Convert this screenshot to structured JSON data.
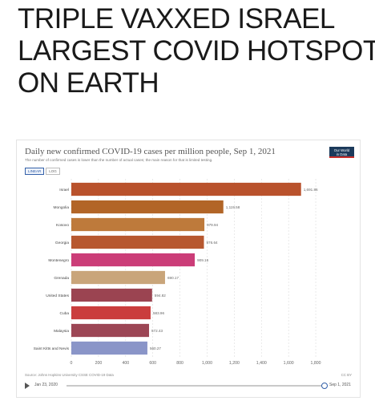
{
  "headline": {
    "lines": [
      "TRIPLE VAXXED ISRAEL",
      "LARGEST COVID HOTSPOT",
      "ON EARTH"
    ]
  },
  "card": {
    "title": "Daily new confirmed COVID-19 cases per million people, Sep 1, 2021",
    "subtitle": "The number of confirmed cases is lower than the number of actual cases; the main reason for that is limited testing.",
    "logo": [
      "Our World",
      "in Data"
    ],
    "toggles": [
      "LINEAR",
      "LOG"
    ],
    "source": "Source: Johns Hopkins University CSSE COVID-19 Data",
    "license": "CC BY",
    "timeline_start": "Jan 23, 2020",
    "timeline_end": "Sep 1, 2021"
  },
  "colors": {
    "accent": "#3360a9"
  },
  "chart_data": {
    "type": "bar",
    "orientation": "horizontal",
    "categories": [
      "Israel",
      "Mongolia",
      "Kosovo",
      "Georgia",
      "Montenegro",
      "Grenada",
      "United States",
      "Cuba",
      "Malaysia",
      "Saint Kitts and Nevis"
    ],
    "values": [
      1691.86,
      1119.58,
      979.94,
      976.64,
      909.16,
      690.17,
      594.82,
      583.96,
      572.43,
      560.27
    ],
    "value_labels": [
      "1,691.86",
      "1,119.58",
      "979.94",
      "976.64",
      "909.16",
      "690.17",
      "594.82",
      "583.96",
      "572.43",
      "560.27"
    ],
    "colors": [
      "#b9522c",
      "#b26527",
      "#be7a3b",
      "#b7582f",
      "#cb3d78",
      "#c9a57a",
      "#9b4451",
      "#ca3d3d",
      "#9c4655",
      "#8a95c8"
    ],
    "xticks": [
      0,
      200,
      400,
      600,
      800,
      1000,
      1200,
      1400,
      1600,
      1800
    ],
    "xtick_labels": [
      "0",
      "200",
      "400",
      "600",
      "800",
      "1,000",
      "1,200",
      "1,400",
      "1,600",
      "1,800"
    ],
    "xlim": [
      0,
      1900
    ],
    "grid": true
  }
}
